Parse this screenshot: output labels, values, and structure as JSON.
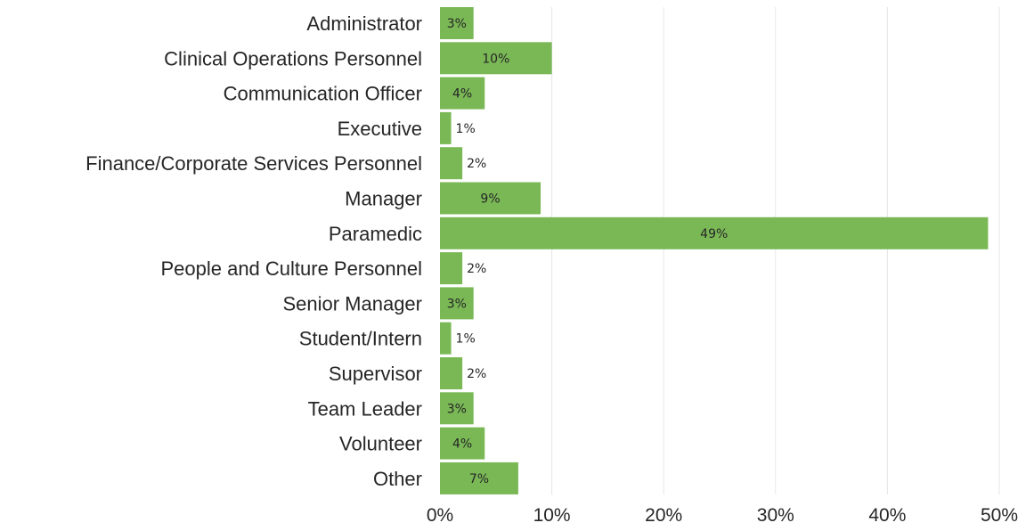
{
  "chart_data": {
    "type": "bar",
    "orientation": "horizontal",
    "categories": [
      "Administrator",
      "Clinical Operations Personnel",
      "Communication Officer",
      "Executive",
      "Finance/Corporate Services Personnel",
      "Manager",
      "Paramedic",
      "People and Culture Personnel",
      "Senior Manager",
      "Student/Intern",
      "Supervisor",
      "Team Leader",
      "Volunteer",
      "Other"
    ],
    "values": [
      3,
      10,
      4,
      1,
      2,
      9,
      49,
      2,
      3,
      1,
      2,
      3,
      4,
      7
    ],
    "value_labels": [
      "3%",
      "10%",
      "4%",
      "1%",
      "2%",
      "9%",
      "49%",
      "2%",
      "3%",
      "1%",
      "2%",
      "3%",
      "4%",
      "7%"
    ],
    "xlim": [
      0,
      50
    ],
    "xticks": [
      0,
      10,
      20,
      30,
      40,
      50
    ],
    "xtick_labels": [
      "0%",
      "10%",
      "20%",
      "30%",
      "40%",
      "50%"
    ],
    "title": "",
    "xlabel": "",
    "ylabel": "",
    "grid": "vertical",
    "legend": "none",
    "bar_color": "#7ab856"
  }
}
